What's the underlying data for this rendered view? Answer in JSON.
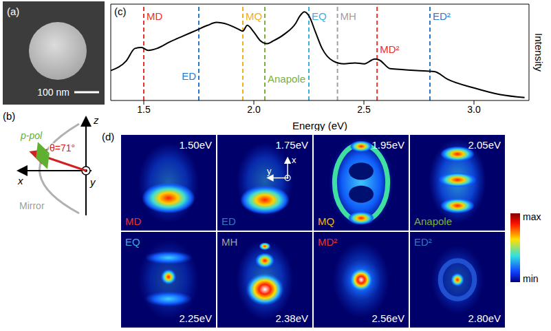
{
  "panels": {
    "a": {
      "label": "(a)",
      "scale_bar": "100 nm"
    },
    "b": {
      "label": "(b)",
      "axes": {
        "z": "z",
        "x": "x",
        "y": "y"
      },
      "polarization": "p-pol",
      "angle": "θ=71°",
      "mirror": "Mirror"
    },
    "c": {
      "label": "(c)"
    },
    "d": {
      "label": "(d)",
      "axes": {
        "x": "x",
        "y": "y"
      },
      "colorbar": {
        "max": "max",
        "min": "min"
      },
      "maps": [
        {
          "energy": "1.50eV",
          "mode": "MD",
          "color": "#e8322a"
        },
        {
          "energy": "1.75eV",
          "mode": "ED",
          "color": "#2a7ac8"
        },
        {
          "energy": "1.95eV",
          "mode": "MQ",
          "color": "#f0b020"
        },
        {
          "energy": "2.05eV",
          "mode": "Anapole",
          "color": "#7ab040"
        },
        {
          "energy": "2.25eV",
          "mode": "EQ",
          "color": "#38b0e0"
        },
        {
          "energy": "2.38eV",
          "mode": "MH",
          "color": "#a0a0a0"
        },
        {
          "energy": "2.56eV",
          "mode": "MD²",
          "color": "#e8322a"
        },
        {
          "energy": "2.80eV",
          "mode": "ED²",
          "color": "#2a7ac8"
        }
      ]
    }
  },
  "chart_data": {
    "type": "line",
    "x_label": "Energy (eV)",
    "y_label": "Intensity",
    "color": "#000000",
    "x": [
      1.35,
      1.42,
      1.46,
      1.49,
      1.52,
      1.56,
      1.62,
      1.68,
      1.74,
      1.79,
      1.83,
      1.88,
      1.93,
      1.95,
      1.97,
      2.0,
      2.03,
      2.06,
      2.09,
      2.14,
      2.19,
      2.21,
      2.23,
      2.25,
      2.28,
      2.31,
      2.36,
      2.41,
      2.46,
      2.5,
      2.55,
      2.57,
      2.62,
      2.68,
      2.74,
      2.82,
      2.88,
      3.0,
      3.12,
      3.23
    ],
    "values": [
      0.31,
      0.41,
      0.54,
      0.55,
      0.52,
      0.54,
      0.61,
      0.67,
      0.73,
      0.78,
      0.81,
      0.79,
      0.74,
      0.72,
      0.78,
      0.71,
      0.62,
      0.59,
      0.62,
      0.69,
      0.8,
      0.88,
      0.92,
      0.88,
      0.71,
      0.54,
      0.41,
      0.38,
      0.39,
      0.38,
      0.43,
      0.42,
      0.33,
      0.32,
      0.31,
      0.3,
      0.22,
      0.13,
      0.06,
      0.03
    ],
    "xlim": [
      1.35,
      3.25
    ],
    "xticks": [
      1.5,
      {
        "value": 2,
        "label": "2.0"
      },
      2.5,
      {
        "value": 3,
        "label": "3.0"
      }
    ],
    "ylim": [
      0,
      1
    ],
    "tick_labels": "x",
    "annotations": [
      {
        "x": 1.5,
        "label": "MD",
        "color": "#e8322a"
      },
      {
        "x": 1.75,
        "label": "ED",
        "color": "#2a7ac8"
      },
      {
        "x": 1.95,
        "label": "MQ",
        "color": "#f0b020"
      },
      {
        "x": 2.05,
        "label": "Anapole",
        "color": "#7ab040"
      },
      {
        "x": 2.25,
        "label": "EQ",
        "color": "#38b0e0"
      },
      {
        "x": 2.38,
        "label": "MH",
        "color": "#a0a0a0"
      },
      {
        "x": 2.56,
        "label": "MD²",
        "color": "#e8322a"
      },
      {
        "x": 2.8,
        "label": "ED²",
        "color": "#2a7ac8"
      }
    ]
  }
}
